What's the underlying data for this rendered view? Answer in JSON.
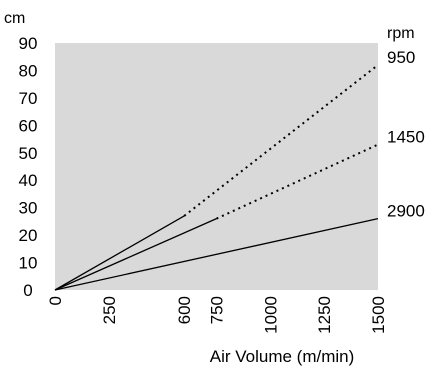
{
  "chart_data": {
    "type": "line",
    "y_unit": "cm",
    "right_unit": "rpm",
    "xlabel": "Air Volume (m/min)",
    "xlim": [
      0,
      1500
    ],
    "ylim": [
      0,
      90
    ],
    "x_ticks": [
      "0",
      "250",
      "600",
      "750",
      "1000",
      "1250",
      "1500"
    ],
    "y_ticks": [
      "0",
      "10",
      "20",
      "30",
      "40",
      "50",
      "60",
      "70",
      "80",
      "90"
    ],
    "grid": false,
    "plot_background": "#d9d9d9",
    "series": [
      {
        "name": "950",
        "solid_end": [
          600,
          27
        ],
        "dotted_end": [
          1500,
          82
        ]
      },
      {
        "name": "1450",
        "solid_end": [
          750,
          26
        ],
        "dotted_end": [
          1500,
          53
        ]
      },
      {
        "name": "2900",
        "solid_end": [
          1500,
          26
        ]
      }
    ]
  }
}
